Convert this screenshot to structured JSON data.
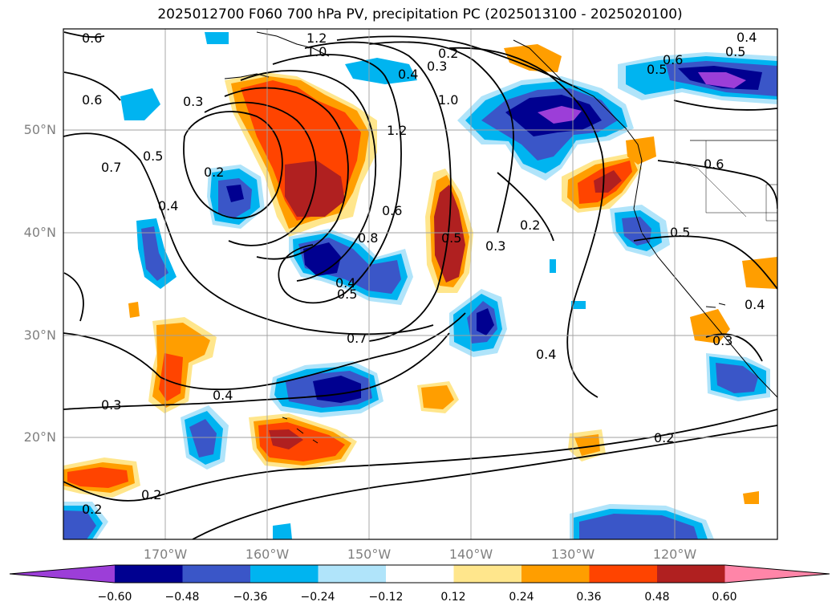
{
  "title": "2025012700 F060 700 hPa PV, precipitation PC (2025013100 - 2025020100)",
  "lat_labels": [
    "50°N",
    "40°N",
    "30°N",
    "20°N"
  ],
  "lon_labels": [
    "170°W",
    "160°W",
    "150°W",
    "140°W",
    "130°W",
    "120°W"
  ],
  "contour_labels": [
    "0.6",
    "0.6",
    "0.3",
    "0.7",
    "0.5",
    "0.4",
    "0.2",
    "1.2",
    "1.0",
    "0.4",
    "0.3",
    "0.2",
    "1.0",
    "1.2",
    "0.6",
    "0.8",
    "0.4",
    "0.5",
    "0.7",
    "0.5",
    "0.3",
    "0.2",
    "0.4",
    "0.4",
    "0.3",
    "0.2",
    "0.2",
    "0.2",
    "0.6",
    "0.5",
    "0.4",
    "0.5",
    "0.6",
    "0.5",
    "0.4",
    "0.3"
  ],
  "colorbar": {
    "ticks": [
      "−0.60",
      "−0.48",
      "−0.36",
      "−0.24",
      "−0.12",
      "0.12",
      "0.24",
      "0.36",
      "0.48",
      "0.60"
    ],
    "colors": [
      "#9c3ed8",
      "#000090",
      "#3a56c8",
      "#00b4f0",
      "#b0e4fa",
      "#ffffff",
      "#ffe68c",
      "#ff9e00",
      "#ff4400",
      "#b02020",
      "#ff85a8"
    ]
  }
}
